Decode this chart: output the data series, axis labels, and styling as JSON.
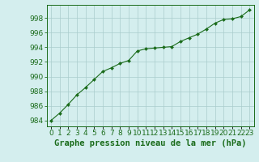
{
  "x": [
    0,
    1,
    2,
    3,
    4,
    5,
    6,
    7,
    8,
    9,
    10,
    11,
    12,
    13,
    14,
    15,
    16,
    17,
    18,
    19,
    20,
    21,
    22,
    23
  ],
  "y": [
    984.0,
    985.0,
    986.2,
    987.5,
    988.5,
    989.6,
    990.7,
    991.2,
    991.8,
    992.2,
    993.5,
    993.8,
    993.9,
    994.0,
    994.1,
    994.8,
    995.3,
    995.8,
    996.5,
    997.3,
    997.8,
    997.9,
    998.2,
    999.1
  ],
  "line_color": "#1a6b1a",
  "marker_color": "#1a6b1a",
  "bg_color": "#d4eeee",
  "grid_color": "#aacccc",
  "ylabel_ticks": [
    984,
    986,
    988,
    990,
    992,
    994,
    996,
    998
  ],
  "xlabel": "Graphe pression niveau de la mer (hPa)",
  "ylim": [
    983.2,
    999.8
  ],
  "xlim": [
    -0.5,
    23.5
  ],
  "tick_fontsize": 6.5,
  "label_fontsize": 7.5
}
